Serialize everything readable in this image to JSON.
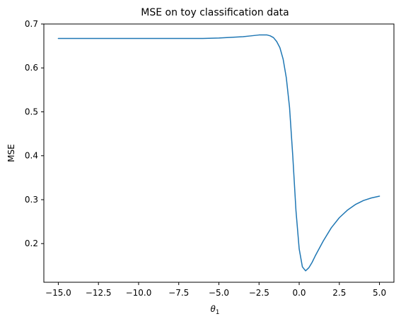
{
  "chart_data": {
    "type": "line",
    "title": "MSE on toy classification data",
    "xlabel_base": "θ",
    "xlabel_sub": "1",
    "ylabel": "MSE",
    "xlim": [
      -15.9,
      5.9
    ],
    "ylim": [
      0.112,
      0.7
    ],
    "xticks": [
      {
        "value": -15.0,
        "label": "−15.0"
      },
      {
        "value": -12.5,
        "label": "−12.5"
      },
      {
        "value": -10.0,
        "label": "−10.0"
      },
      {
        "value": -7.5,
        "label": "−7.5"
      },
      {
        "value": -5.0,
        "label": "−5.0"
      },
      {
        "value": -2.5,
        "label": "−2.5"
      },
      {
        "value": 0.0,
        "label": "0.0"
      },
      {
        "value": 2.5,
        "label": "2.5"
      },
      {
        "value": 5.0,
        "label": "5.0"
      }
    ],
    "yticks": [
      {
        "value": 0.2,
        "label": "0.2"
      },
      {
        "value": 0.3,
        "label": "0.3"
      },
      {
        "value": 0.4,
        "label": "0.4"
      },
      {
        "value": 0.5,
        "label": "0.5"
      },
      {
        "value": 0.6,
        "label": "0.6"
      },
      {
        "value": 0.7,
        "label": "0.7"
      }
    ],
    "grid": false,
    "series": [
      {
        "color": "#1f77b4",
        "x": [
          -15.0,
          -12.5,
          -10.0,
          -7.5,
          -6.0,
          -5.0,
          -4.0,
          -3.5,
          -3.0,
          -2.5,
          -2.0,
          -1.8,
          -1.6,
          -1.4,
          -1.2,
          -1.0,
          -0.8,
          -0.6,
          -0.4,
          -0.2,
          0.0,
          0.2,
          0.4,
          0.6,
          0.8,
          1.0,
          1.5,
          2.0,
          2.5,
          3.0,
          3.5,
          4.0,
          4.5,
          5.0
        ],
        "y": [
          0.667,
          0.667,
          0.667,
          0.667,
          0.667,
          0.668,
          0.67,
          0.671,
          0.673,
          0.675,
          0.675,
          0.673,
          0.669,
          0.66,
          0.646,
          0.62,
          0.577,
          0.51,
          0.4,
          0.275,
          0.188,
          0.147,
          0.138,
          0.145,
          0.157,
          0.172,
          0.206,
          0.236,
          0.259,
          0.276,
          0.289,
          0.298,
          0.304,
          0.308
        ]
      }
    ]
  }
}
